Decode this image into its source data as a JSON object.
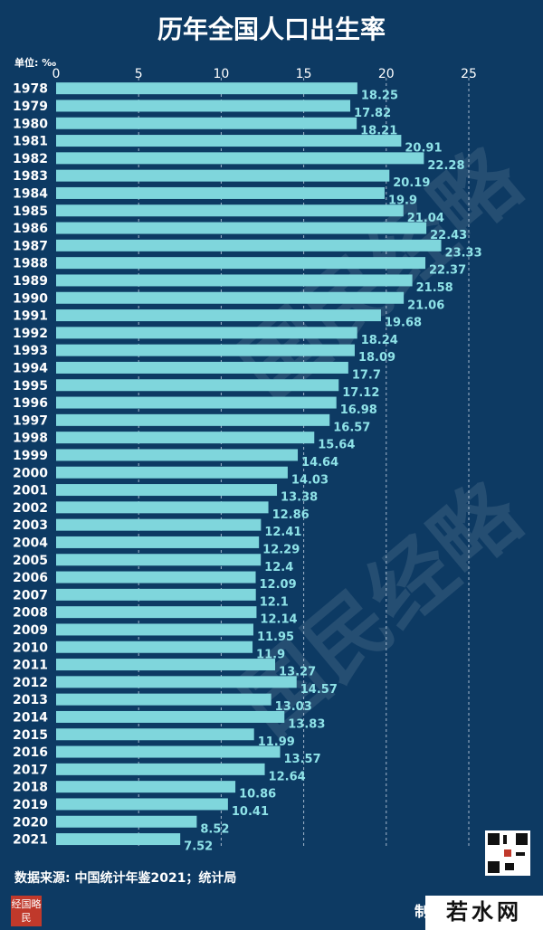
{
  "chart_data": {
    "type": "bar",
    "orientation": "horizontal",
    "title": "历年全国人口出生率",
    "unit_label": "单位: ‰",
    "xlim": [
      0,
      25
    ],
    "xticks": [
      "0",
      "5",
      "10",
      "15",
      "20",
      "25"
    ],
    "grid": true,
    "categories": [
      "1978",
      "1979",
      "1980",
      "1981",
      "1982",
      "1983",
      "1984",
      "1985",
      "1986",
      "1987",
      "1988",
      "1989",
      "1990",
      "1991",
      "1992",
      "1993",
      "1994",
      "1995",
      "1996",
      "1997",
      "1998",
      "1999",
      "2000",
      "2001",
      "2002",
      "2003",
      "2004",
      "2005",
      "2006",
      "2007",
      "2008",
      "2009",
      "2010",
      "2011",
      "2012",
      "2013",
      "2014",
      "2015",
      "2016",
      "2017",
      "2018",
      "2019",
      "2020",
      "2021"
    ],
    "values": [
      18.25,
      17.82,
      18.21,
      20.91,
      22.28,
      20.19,
      19.9,
      21.04,
      22.43,
      23.33,
      22.37,
      21.58,
      21.06,
      19.68,
      18.24,
      18.09,
      17.7,
      17.12,
      16.98,
      16.57,
      15.64,
      14.64,
      14.03,
      13.38,
      12.86,
      12.41,
      12.29,
      12.4,
      12.09,
      12.1,
      12.14,
      11.95,
      11.9,
      13.27,
      14.57,
      13.03,
      13.83,
      11.99,
      13.57,
      12.64,
      10.86,
      10.41,
      8.52,
      7.52
    ],
    "value_labels": [
      "18.25",
      "17.82",
      "18.21",
      "20.91",
      "22.28",
      "20.19",
      "19.9",
      "21.04",
      "22.43",
      "23.33",
      "22.37",
      "21.58",
      "21.06",
      "19.68",
      "18.24",
      "18.09",
      "17.7",
      "17.12",
      "16.98",
      "16.57",
      "15.64",
      "14.64",
      "14.03",
      "13.38",
      "12.86",
      "12.41",
      "12.29",
      "12.4",
      "12.09",
      "12.1",
      "12.14",
      "11.95",
      "11.9",
      "13.27",
      "14.57",
      "13.03",
      "13.83",
      "11.99",
      "13.57",
      "12.64",
      "10.86",
      "10.41",
      "8.52",
      "7.52"
    ]
  },
  "footer": {
    "source": "数据来源: 中国统计年鉴2021；统计局",
    "maker": "制",
    "site": "若水网"
  },
  "watermark": "国民经略",
  "logo_text": "经国略民",
  "colors": {
    "background": "#0d3a63",
    "bar": "#7fd6dc",
    "value_label": "#8fe3e8"
  }
}
